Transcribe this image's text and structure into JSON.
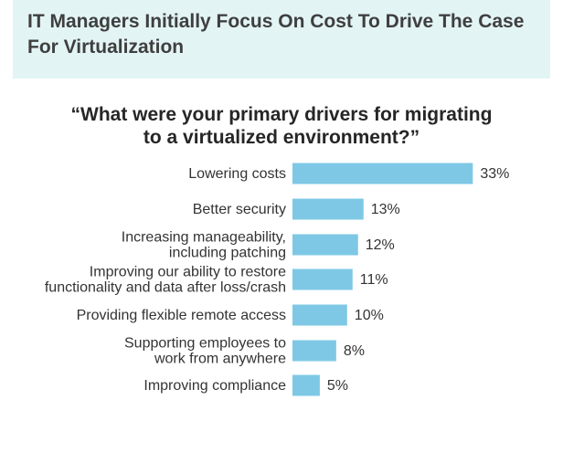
{
  "header": {
    "title": "IT Managers Initially Focus On Cost To Drive The Case For Virtualization"
  },
  "question": {
    "line1": "“What were your primary drivers for migrating",
    "line2": "to a virtualized environment?”"
  },
  "chart_data": {
    "type": "bar",
    "orientation": "horizontal",
    "categories": [
      [
        "Lowering costs"
      ],
      [
        "Better security"
      ],
      [
        "Increasing manageability,",
        "including patching"
      ],
      [
        "Improving our ability to restore",
        "functionality and data after loss/crash"
      ],
      [
        "Providing flexible remote access"
      ],
      [
        "Supporting employees to",
        "work from anywhere"
      ],
      [
        "Improving compliance"
      ]
    ],
    "values": [
      33,
      13,
      12,
      11,
      10,
      8,
      5
    ],
    "value_labels": [
      "33%",
      "13%",
      "12%",
      "11%",
      "10%",
      "8%",
      "5%"
    ],
    "unit": "%",
    "bar_color": "#7ec8e6",
    "grid": false,
    "legend": "none"
  }
}
